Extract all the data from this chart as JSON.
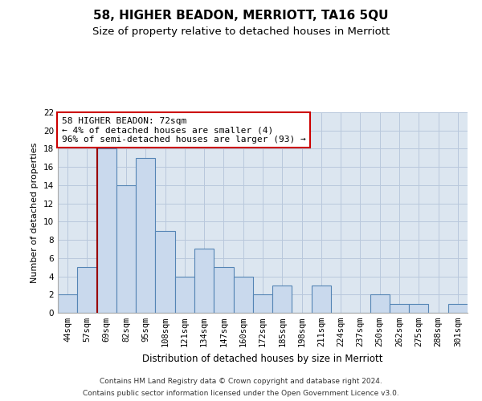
{
  "title": "58, HIGHER BEADON, MERRIOTT, TA16 5QU",
  "subtitle": "Size of property relative to detached houses in Merriott",
  "xlabel": "Distribution of detached houses by size in Merriott",
  "ylabel": "Number of detached properties",
  "categories": [
    "44sqm",
    "57sqm",
    "69sqm",
    "82sqm",
    "95sqm",
    "108sqm",
    "121sqm",
    "134sqm",
    "147sqm",
    "160sqm",
    "172sqm",
    "185sqm",
    "198sqm",
    "211sqm",
    "224sqm",
    "237sqm",
    "250sqm",
    "262sqm",
    "275sqm",
    "288sqm",
    "301sqm"
  ],
  "values": [
    2,
    5,
    18,
    14,
    17,
    9,
    4,
    7,
    5,
    4,
    2,
    3,
    0,
    3,
    0,
    0,
    2,
    1,
    1,
    0,
    1
  ],
  "bar_color": "#c9d9ed",
  "bar_edge_color": "#5585b5",
  "grid_color": "#b8c8dc",
  "background_color": "#dce6f0",
  "annotation_text": "58 HIGHER BEADON: 72sqm\n← 4% of detached houses are smaller (4)\n96% of semi-detached houses are larger (93) →",
  "annotation_box_facecolor": "#ffffff",
  "annotation_box_edgecolor": "#cc0000",
  "vline_x": 1.5,
  "vline_color": "#990000",
  "ylim": [
    0,
    22
  ],
  "yticks": [
    0,
    2,
    4,
    6,
    8,
    10,
    12,
    14,
    16,
    18,
    20,
    22
  ],
  "footer1": "Contains HM Land Registry data © Crown copyright and database right 2024.",
  "footer2": "Contains public sector information licensed under the Open Government Licence v3.0.",
  "title_fontsize": 11,
  "subtitle_fontsize": 9.5,
  "xlabel_fontsize": 8.5,
  "ylabel_fontsize": 8,
  "tick_fontsize": 7.5,
  "footer_fontsize": 6.5,
  "ann_fontsize": 8
}
